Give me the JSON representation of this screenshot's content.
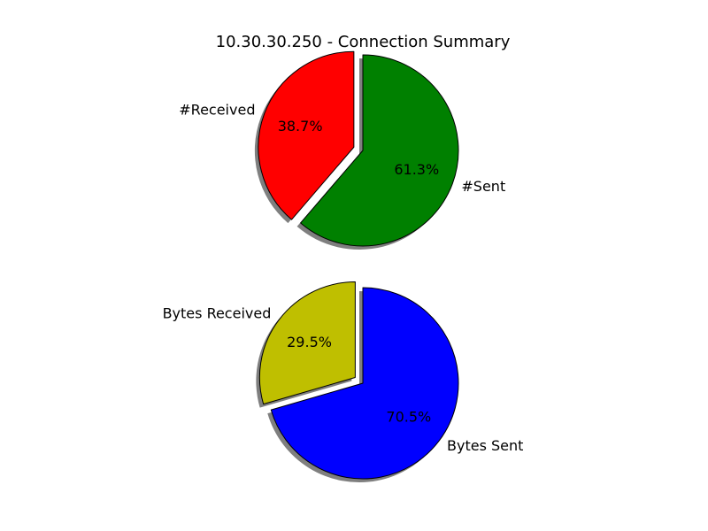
{
  "chart_data": [
    {
      "type": "pie",
      "title": "10.30.30.250 - Connection Summary",
      "labels": [
        "#Received",
        "#Sent"
      ],
      "values": [
        38.7,
        61.3
      ],
      "pct_labels": [
        "38.7%",
        "61.3%"
      ],
      "colors": [
        "#ff0000",
        "#008000"
      ],
      "exploded": [
        true,
        false
      ],
      "shadow": true,
      "start_angle_deg": 90
    },
    {
      "type": "pie",
      "title": "",
      "labels": [
        "Bytes Received",
        "Bytes Sent"
      ],
      "values": [
        29.5,
        70.5
      ],
      "pct_labels": [
        "29.5%",
        "70.5%"
      ],
      "colors": [
        "#bfbf00",
        "#0000ff"
      ],
      "exploded": [
        true,
        false
      ],
      "shadow": true,
      "start_angle_deg": 90
    }
  ]
}
